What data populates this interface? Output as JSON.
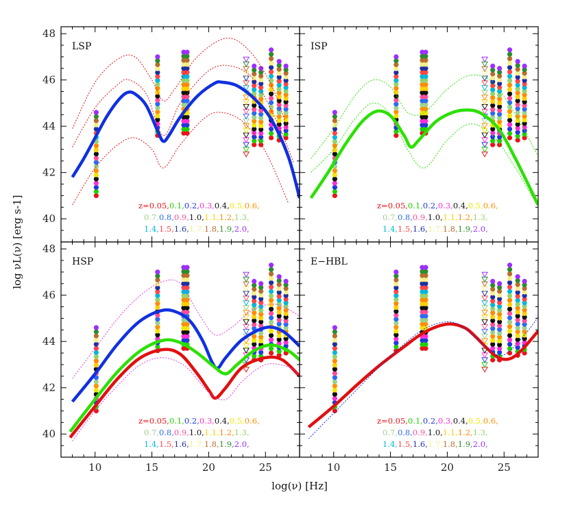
{
  "figure": {
    "xlabel": "log(ν) [Hz]",
    "ylabel": "log νL(ν) [erg s-1]"
  },
  "legend": {
    "rows": [
      [
        {
          "text": "z=0.05,",
          "color": "#e8141b"
        },
        {
          "text": "0.1,",
          "color": "#22d000"
        },
        {
          "text": "0.2,",
          "color": "#1f3bd8"
        },
        {
          "text": "0.3,",
          "color": "#ff2fd5"
        },
        {
          "text": "0.4,",
          "color": "#111111"
        },
        {
          "text": "0.5,",
          "color": "#f2e600"
        },
        {
          "text": "0.6,",
          "color": "#ff9000"
        }
      ],
      [
        {
          "text": "0.7,",
          "color": "#9ed28a"
        },
        {
          "text": "0.8,",
          "color": "#2a6cf0"
        },
        {
          "text": "0.9,",
          "color": "#ff4f9a"
        },
        {
          "text": "1.0,",
          "color": "#111111"
        },
        {
          "text": "1.1,",
          "color": "#ffd000"
        },
        {
          "text": "1.2,",
          "color": "#ff8a00"
        },
        {
          "text": "1.3,",
          "color": "#99d26a"
        }
      ],
      [
        {
          "text": "1.4,",
          "color": "#00b8d8"
        },
        {
          "text": "1.5,",
          "color": "#ff4747"
        },
        {
          "text": "1.6,",
          "color": "#1f2fa0"
        },
        {
          "text": "1.7,",
          "color": "#f5f08a"
        },
        {
          "text": "1.8,",
          "color": "#b96d2c"
        },
        {
          "text": "1.9,",
          "color": "#2e8b2e"
        },
        {
          "text": "2.0,",
          "color": "#9b30ff"
        }
      ]
    ]
  },
  "chart_data": [
    {
      "type": "line",
      "panel": "LSP",
      "title": "LSP",
      "xlim": [
        7,
        28
      ],
      "ylim": [
        39,
        48.3
      ],
      "x_ticks": [
        10,
        15,
        20,
        25
      ],
      "y_ticks": [
        40,
        42,
        44,
        46,
        48
      ],
      "grid": false,
      "series": [
        {
          "color": "#1030e0",
          "style": "thick-solid",
          "points": [
            [
              8,
              41.8
            ],
            [
              9,
              42.6
            ],
            [
              10,
              43.5
            ],
            [
              11,
              44.4
            ],
            [
              12,
              45.1
            ],
            [
              12.8,
              45.45
            ],
            [
              13.5,
              45.4
            ],
            [
              14.5,
              44.9
            ],
            [
              15.5,
              43.8
            ],
            [
              16,
              43.35
            ],
            [
              16.5,
              43.6
            ],
            [
              17.5,
              44.4
            ],
            [
              19,
              45.3
            ],
            [
              20.5,
              45.85
            ],
            [
              21.2,
              45.9
            ],
            [
              22.5,
              45.75
            ],
            [
              24,
              45.2
            ],
            [
              25.5,
              44.3
            ],
            [
              27,
              42.7
            ],
            [
              28,
              40.9
            ]
          ]
        },
        {
          "color": "#e01010",
          "style": "dotted",
          "role": "individual source SEDs",
          "points": [
            [
              8,
              43.9
            ],
            [
              10,
              45.9
            ],
            [
              12,
              46.9
            ],
            [
              13.5,
              47.0
            ],
            [
              15,
              46.0
            ],
            [
              16,
              45.1
            ],
            [
              17,
              45.6
            ],
            [
              19,
              47.0
            ],
            [
              21.5,
              47.8
            ],
            [
              23.5,
              47.3
            ],
            [
              25.5,
              45.8
            ],
            [
              27,
              43.8
            ]
          ]
        },
        {
          "color": "#e01010",
          "style": "dotted",
          "role": "individual source SEDs",
          "points": [
            [
              8,
              43.1
            ],
            [
              10,
              44.8
            ],
            [
              12,
              45.8
            ],
            [
              13,
              46.0
            ],
            [
              14.5,
              45.4
            ],
            [
              16,
              43.6
            ],
            [
              17.5,
              45.0
            ],
            [
              20,
              46.4
            ],
            [
              22,
              46.6
            ],
            [
              24,
              46.0
            ],
            [
              26,
              44.2
            ],
            [
              27.5,
              42.4
            ]
          ]
        },
        {
          "color": "#e01010",
          "style": "dotted",
          "role": "individual source SEDs",
          "points": [
            [
              8,
              40.6
            ],
            [
              10,
              42.2
            ],
            [
              12,
              43.2
            ],
            [
              13.5,
              43.5
            ],
            [
              15,
              43.0
            ],
            [
              16,
              42.2
            ],
            [
              17.5,
              43.2
            ],
            [
              19.5,
              44.3
            ],
            [
              21,
              44.6
            ],
            [
              23,
              44.2
            ],
            [
              25,
              42.9
            ],
            [
              27,
              40.7
            ]
          ]
        }
      ]
    },
    {
      "type": "line",
      "panel": "ISP",
      "title": "ISP",
      "xlim": [
        7,
        28
      ],
      "ylim": [
        39,
        48.3
      ],
      "x_ticks": [
        10,
        15,
        20,
        25
      ],
      "y_ticks": [
        40,
        42,
        44,
        46,
        48
      ],
      "grid": false,
      "series": [
        {
          "color": "#2ce000",
          "style": "thick-solid",
          "points": [
            [
              8,
              40.9
            ],
            [
              9.5,
              42.0
            ],
            [
              11,
              43.2
            ],
            [
              12.5,
              44.2
            ],
            [
              13.8,
              44.65
            ],
            [
              15,
              44.45
            ],
            [
              16.2,
              43.6
            ],
            [
              16.8,
              43.1
            ],
            [
              17.5,
              43.4
            ],
            [
              19,
              44.2
            ],
            [
              20.5,
              44.6
            ],
            [
              21.8,
              44.7
            ],
            [
              23,
              44.55
            ],
            [
              24.5,
              43.9
            ],
            [
              26,
              42.6
            ],
            [
              28,
              40.6
            ]
          ]
        },
        {
          "color": "#2ce000",
          "style": "dotted",
          "role": "individual source SEDs",
          "points": [
            [
              8,
              42.6
            ],
            [
              10,
              43.9
            ],
            [
              12,
              45.4
            ],
            [
              13.5,
              46.0
            ],
            [
              15,
              45.7
            ],
            [
              16.5,
              44.6
            ],
            [
              18,
              44.6
            ],
            [
              20,
              45.6
            ],
            [
              22,
              46.2
            ],
            [
              24,
              45.9
            ],
            [
              26,
              44.5
            ],
            [
              28,
              42.7
            ]
          ]
        },
        {
          "color": "#2ce000",
          "style": "dotted",
          "role": "individual source SEDs",
          "points": [
            [
              8,
              42.0
            ],
            [
              10,
              43.0
            ],
            [
              12,
              44.4
            ],
            [
              13.5,
              45.0
            ],
            [
              15,
              44.5
            ],
            [
              16.5,
              43.0
            ],
            [
              18,
              42.2
            ],
            [
              20,
              43.4
            ],
            [
              22,
              44.1
            ],
            [
              24,
              43.6
            ],
            [
              26,
              42.2
            ],
            [
              28,
              40.5
            ]
          ]
        }
      ]
    },
    {
      "type": "line",
      "panel": "HSP",
      "title": "HSP",
      "xlim": [
        7,
        28
      ],
      "ylim": [
        39,
        48.3
      ],
      "x_ticks": [
        10,
        15,
        20,
        25
      ],
      "y_ticks": [
        40,
        42,
        44,
        46,
        48
      ],
      "grid": false,
      "series": [
        {
          "color": "#1030e0",
          "style": "thick-solid",
          "points": [
            [
              8,
              41.4
            ],
            [
              10,
              42.6
            ],
            [
              12,
              43.9
            ],
            [
              14,
              44.9
            ],
            [
              16,
              45.35
            ],
            [
              17.5,
              45.2
            ],
            [
              18.5,
              44.8
            ],
            [
              19.5,
              44.0
            ],
            [
              20.3,
              43.1
            ],
            [
              20.8,
              42.85
            ],
            [
              21.5,
              43.3
            ],
            [
              23,
              44.1
            ],
            [
              25,
              44.6
            ],
            [
              26.5,
              44.45
            ],
            [
              28,
              43.8
            ]
          ]
        },
        {
          "color": "#2ce000",
          "style": "thick-solid",
          "points": [
            [
              7.8,
              40.1
            ],
            [
              10,
              41.5
            ],
            [
              12,
              42.7
            ],
            [
              14,
              43.6
            ],
            [
              16,
              44.05
            ],
            [
              17.5,
              43.95
            ],
            [
              19,
              43.5
            ],
            [
              20.5,
              42.9
            ],
            [
              21.5,
              42.6
            ],
            [
              22.5,
              43.0
            ],
            [
              24,
              43.6
            ],
            [
              25.5,
              43.85
            ],
            [
              27,
              43.6
            ],
            [
              28,
              43.2
            ]
          ]
        },
        {
          "color": "#e01010",
          "style": "thick-solid",
          "points": [
            [
              7.8,
              39.85
            ],
            [
              10,
              41.2
            ],
            [
              12,
              42.4
            ],
            [
              14,
              43.3
            ],
            [
              16,
              43.65
            ],
            [
              17.5,
              43.45
            ],
            [
              19,
              42.6
            ],
            [
              20,
              41.9
            ],
            [
              20.6,
              41.55
            ],
            [
              21.5,
              42.0
            ],
            [
              23,
              42.9
            ],
            [
              25,
              43.3
            ],
            [
              26.5,
              43.2
            ],
            [
              28,
              42.5
            ]
          ]
        },
        {
          "color": "#e838e8",
          "style": "dotted",
          "role": "individual source SEDs",
          "points": [
            [
              8,
              42.4
            ],
            [
              10,
              43.7
            ],
            [
              12,
              45.0
            ],
            [
              14,
              46.0
            ],
            [
              16,
              46.6
            ],
            [
              17.5,
              46.5
            ],
            [
              19,
              45.3
            ],
            [
              20.5,
              44.3
            ],
            [
              22,
              44.6
            ],
            [
              24,
              45.4
            ],
            [
              26,
              45.6
            ],
            [
              28,
              45.1
            ]
          ]
        },
        {
          "color": "#e838e8",
          "style": "dotted",
          "role": "individual source SEDs",
          "points": [
            [
              8,
              39.7
            ],
            [
              10,
              41.0
            ],
            [
              12,
              42.1
            ],
            [
              14,
              43.0
            ],
            [
              16,
              43.3
            ],
            [
              18,
              42.9
            ],
            [
              20,
              41.8
            ],
            [
              21.5,
              41.5
            ],
            [
              23,
              42.3
            ],
            [
              25,
              43.0
            ],
            [
              27,
              42.9
            ],
            [
              28,
              42.5
            ]
          ]
        }
      ]
    },
    {
      "type": "line",
      "panel": "E-HBL",
      "title": "E−HBL",
      "xlim": [
        7,
        28
      ],
      "ylim": [
        39,
        48.3
      ],
      "x_ticks": [
        10,
        15,
        20,
        25
      ],
      "y_ticks": [
        40,
        42,
        44,
        46,
        48
      ],
      "grid": false,
      "series": [
        {
          "color": "#e01010",
          "style": "thick-solid",
          "points": [
            [
              7.8,
              40.3
            ],
            [
              10,
              41.2
            ],
            [
              12,
              42.1
            ],
            [
              14,
              42.95
            ],
            [
              16,
              43.7
            ],
            [
              18,
              44.4
            ],
            [
              20,
              44.75
            ],
            [
              21.5,
              44.6
            ],
            [
              22.5,
              44.2
            ],
            [
              23.5,
              43.7
            ],
            [
              24.5,
              43.3
            ],
            [
              25.5,
              43.25
            ],
            [
              26.5,
              43.6
            ],
            [
              28,
              44.45
            ]
          ]
        },
        {
          "color": "#1030e0",
          "style": "dotted",
          "role": "model",
          "points": [
            [
              7.8,
              39.8
            ],
            [
              10,
              40.9
            ],
            [
              12,
              41.9
            ],
            [
              14,
              42.9
            ],
            [
              16,
              43.8
            ],
            [
              18,
              44.55
            ],
            [
              20,
              44.85
            ],
            [
              21.5,
              44.6
            ],
            [
              23,
              43.95
            ],
            [
              24.5,
              43.4
            ],
            [
              25.5,
              43.6
            ],
            [
              27,
              44.4
            ],
            [
              28,
              45.05
            ]
          ]
        }
      ]
    }
  ]
}
